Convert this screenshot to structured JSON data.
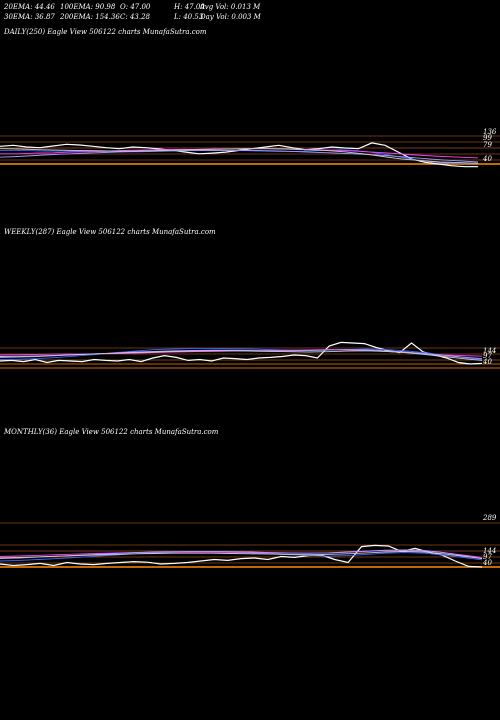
{
  "header": {
    "ema20": "20EMA: 44.46",
    "ema100": "100EMA: 90.98",
    "open": "O: 47.00",
    "high": "H: 47.00",
    "avg_vol": "Avg Vol: 0.013 M",
    "ema30": "30EMA: 36.87",
    "ema200": "200EMA: 154.36",
    "close": "C: 43.28",
    "low": "L: 40.53",
    "day_vol": "Day Vol: 0.003 M"
  },
  "chart_data": [
    {
      "type": "line",
      "title": "DAILY(250) Eagle  View  506122  charts MunafaSutra.com",
      "price_labels": [
        "136",
        "99",
        "79",
        "40"
      ],
      "ref_line_color": "#ff8c00",
      "series": [
        {
          "color": "#ffffff",
          "values": [
            0.52,
            0.55,
            0.5,
            0.48,
            0.53,
            0.58,
            0.56,
            0.52,
            0.48,
            0.45,
            0.5,
            0.48,
            0.44,
            0.4,
            0.35,
            0.3,
            0.32,
            0.35,
            0.4,
            0.45,
            0.5,
            0.55,
            0.48,
            0.42,
            0.45,
            0.5,
            0.47,
            0.45,
            0.62,
            0.55,
            0.35,
            0.15,
            0.05,
            0.0,
            -0.05,
            -0.08,
            -0.08
          ]
        },
        {
          "color": "#3b66ff",
          "values": [
            0.4,
            0.4,
            0.39,
            0.38,
            0.38,
            0.38,
            0.37,
            0.36,
            0.36,
            0.36,
            0.37,
            0.38,
            0.39,
            0.4,
            0.4,
            0.4,
            0.39,
            0.38,
            0.37,
            0.37,
            0.38,
            0.4,
            0.42,
            0.4,
            0.35,
            0.28,
            0.2,
            0.12,
            0.06,
            0.03,
            0.02,
            0.02
          ]
        },
        {
          "color": "#ff40ff",
          "values": [
            0.3,
            0.3,
            0.32,
            0.33,
            0.35,
            0.36,
            0.38,
            0.4,
            0.41,
            0.42,
            0.43,
            0.43,
            0.44,
            0.44,
            0.45,
            0.45,
            0.44,
            0.43,
            0.42,
            0.4,
            0.38,
            0.35,
            0.32,
            0.28,
            0.25,
            0.22,
            0.2,
            0.18
          ]
        },
        {
          "color": "#a0a0ff",
          "values": [
            0.2,
            0.22,
            0.25,
            0.28,
            0.3,
            0.32,
            0.34,
            0.36,
            0.37,
            0.38,
            0.39,
            0.4,
            0.4,
            0.4,
            0.4,
            0.39,
            0.38,
            0.36,
            0.34,
            0.32,
            0.3,
            0.27,
            0.24,
            0.2,
            0.16,
            0.12,
            0.09,
            0.06
          ]
        },
        {
          "color": "#cccccc",
          "values": [
            0.45,
            0.44,
            0.42,
            0.41,
            0.4,
            0.39,
            0.38,
            0.38,
            0.39,
            0.41,
            0.42,
            0.43,
            0.44,
            0.45,
            0.45,
            0.44,
            0.42,
            0.4,
            0.36,
            0.3,
            0.22,
            0.15,
            0.1,
            0.06,
            0.04,
            0.02
          ]
        }
      ]
    },
    {
      "type": "line",
      "title": "WEEKLY(287) Eagle  View  506122  charts MunafaSutra.com",
      "price_labels": [
        "144",
        "97",
        "40"
      ],
      "ref_line_color": "#ff8c00",
      "series": [
        {
          "color": "#ffffff",
          "values": [
            0.1,
            0.12,
            0.08,
            0.15,
            0.05,
            0.12,
            0.1,
            0.08,
            0.15,
            0.12,
            0.1,
            0.15,
            0.08,
            0.2,
            0.28,
            0.22,
            0.12,
            0.15,
            0.1,
            0.2,
            0.18,
            0.15,
            0.2,
            0.22,
            0.25,
            0.3,
            0.28,
            0.2,
            0.6,
            0.72,
            0.7,
            0.68,
            0.55,
            0.45,
            0.38,
            0.7,
            0.4,
            0.3,
            0.2,
            0.05,
            0.0,
            0.02
          ]
        },
        {
          "color": "#3b66ff",
          "values": [
            0.15,
            0.16,
            0.18,
            0.22,
            0.27,
            0.32,
            0.38,
            0.43,
            0.48,
            0.5,
            0.52,
            0.52,
            0.51,
            0.5,
            0.48,
            0.46,
            0.45,
            0.46,
            0.48,
            0.5,
            0.48,
            0.44,
            0.38,
            0.3,
            0.22,
            0.15
          ]
        },
        {
          "color": "#ff40ff",
          "values": [
            0.3,
            0.31,
            0.32,
            0.33,
            0.33,
            0.34,
            0.35,
            0.36,
            0.38,
            0.4,
            0.41,
            0.42,
            0.43,
            0.44,
            0.45,
            0.46,
            0.47,
            0.48,
            0.47,
            0.45,
            0.42,
            0.38,
            0.34,
            0.3,
            0.28,
            0.26
          ]
        },
        {
          "color": "#a0a0ff",
          "values": [
            0.22,
            0.23,
            0.25,
            0.28,
            0.31,
            0.34,
            0.37,
            0.4,
            0.42,
            0.44,
            0.45,
            0.46,
            0.46,
            0.45,
            0.44,
            0.44,
            0.45,
            0.47,
            0.48,
            0.47,
            0.44,
            0.4,
            0.35,
            0.29,
            0.23,
            0.18
          ]
        },
        {
          "color": "#cccccc",
          "values": [
            0.25,
            0.26,
            0.27,
            0.29,
            0.31,
            0.34,
            0.36,
            0.38,
            0.4,
            0.42,
            0.43,
            0.44,
            0.44,
            0.43,
            0.42,
            0.41,
            0.4,
            0.41,
            0.43,
            0.44,
            0.42,
            0.38,
            0.32,
            0.25,
            0.18,
            0.12
          ]
        }
      ]
    },
    {
      "type": "line",
      "title": "MONTHLY(36) Eagle  View  506122  charts MunafaSutra.com",
      "price_labels": [
        "289",
        "144",
        "97",
        "40"
      ],
      "ref_line_color": "#ff8c00",
      "series": [
        {
          "color": "#ffffff",
          "values": [
            0.1,
            0.05,
            0.08,
            0.12,
            0.05,
            0.15,
            0.1,
            0.08,
            0.12,
            0.15,
            0.18,
            0.16,
            0.1,
            0.12,
            0.15,
            0.2,
            0.25,
            0.22,
            0.28,
            0.3,
            0.25,
            0.35,
            0.32,
            0.38,
            0.4,
            0.25,
            0.15,
            0.68,
            0.72,
            0.7,
            0.52,
            0.62,
            0.5,
            0.4,
            0.2,
            0.02,
            0.0
          ]
        },
        {
          "color": "#3b66ff",
          "values": [
            0.2,
            0.22,
            0.25,
            0.28,
            0.32,
            0.36,
            0.4,
            0.44,
            0.47,
            0.49,
            0.5,
            0.5,
            0.49,
            0.47,
            0.44,
            0.41,
            0.38,
            0.36,
            0.38,
            0.42,
            0.46,
            0.48,
            0.46,
            0.4,
            0.32,
            0.24
          ]
        },
        {
          "color": "#ff40ff",
          "values": [
            0.35,
            0.37,
            0.39,
            0.41,
            0.43,
            0.45,
            0.47,
            0.48,
            0.49,
            0.5,
            0.5,
            0.5,
            0.49,
            0.48,
            0.47,
            0.46,
            0.46,
            0.47,
            0.49,
            0.52,
            0.55,
            0.56,
            0.54,
            0.48,
            0.4,
            0.32
          ]
        },
        {
          "color": "#a0a0ff",
          "values": [
            0.28,
            0.3,
            0.33,
            0.36,
            0.39,
            0.42,
            0.45,
            0.48,
            0.5,
            0.51,
            0.52,
            0.52,
            0.51,
            0.5,
            0.48,
            0.47,
            0.46,
            0.47,
            0.5,
            0.53,
            0.56,
            0.57,
            0.55,
            0.48,
            0.38,
            0.28
          ]
        },
        {
          "color": "#cccccc",
          "values": [
            0.3,
            0.32,
            0.34,
            0.36,
            0.38,
            0.4,
            0.42,
            0.44,
            0.45,
            0.46,
            0.46,
            0.46,
            0.45,
            0.44,
            0.43,
            0.42,
            0.41,
            0.42,
            0.44,
            0.47,
            0.5,
            0.52,
            0.5,
            0.44,
            0.36,
            0.28
          ]
        }
      ]
    }
  ]
}
